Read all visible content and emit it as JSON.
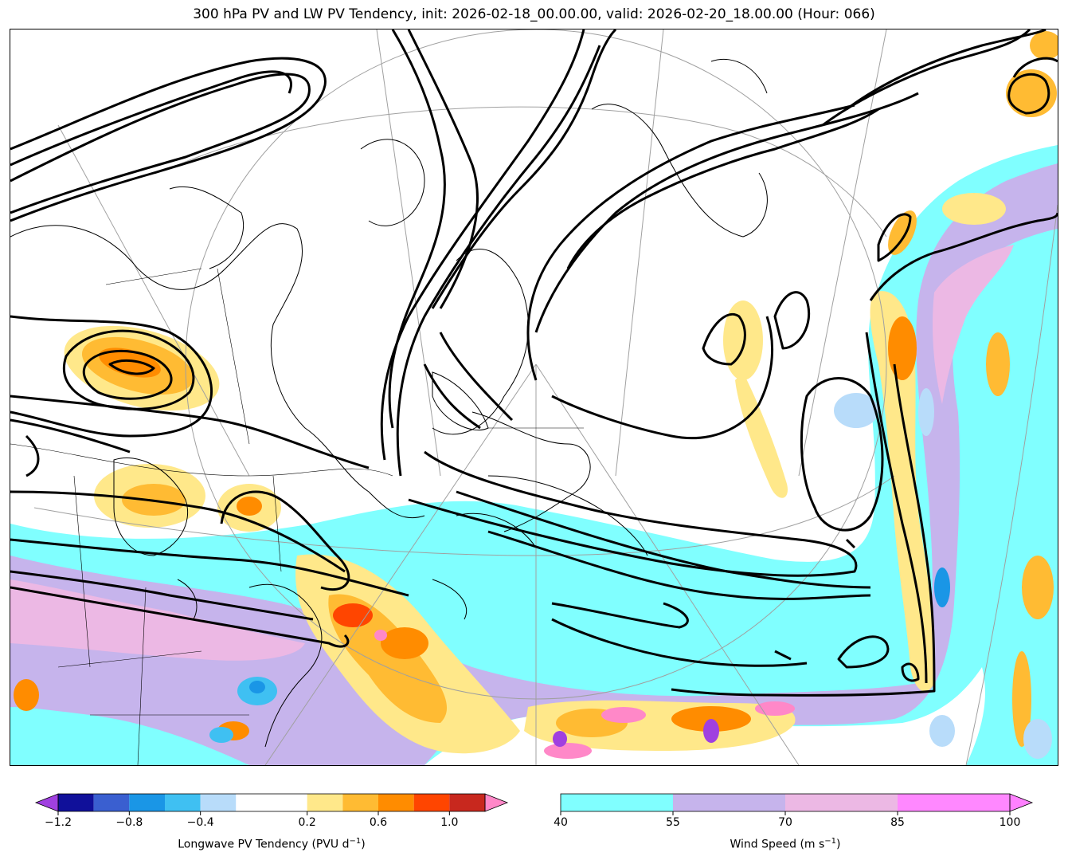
{
  "title": "300 hPa PV and LW PV Tendency, init: 2026-02-18_00.00.00, valid: 2026-02-20_18.00.00 (Hour: 066)",
  "colorbar_left": {
    "label": "Longwave PV Tendency (PVU d",
    "label_exp": "−1",
    "label_close": ")",
    "ticks": [
      "−1.2",
      "−0.8",
      "−0.4",
      "0.2",
      "0.6",
      "1.0"
    ],
    "tick_values": [
      -1.2,
      -0.8,
      -0.4,
      0.2,
      0.6,
      1.0
    ],
    "bounds": [
      -1.2,
      -1.0,
      -0.8,
      -0.6,
      -0.4,
      -0.2,
      0.2,
      0.4,
      0.6,
      0.8,
      1.0,
      1.2
    ],
    "colors": [
      "#10109a",
      "#3a5fd0",
      "#1a96e6",
      "#3fc0f2",
      "#b8dcfa",
      "#ffffff",
      "#ffe88a",
      "#ffbb33",
      "#ff8c00",
      "#ff4500",
      "#c8281e"
    ],
    "under_color": "#a040e0",
    "over_color": "#ff88c8"
  },
  "colorbar_right": {
    "label": "Wind Speed (m s",
    "label_exp": "−1",
    "label_close": ")",
    "ticks": [
      "40",
      "55",
      "70",
      "85",
      "100"
    ],
    "tick_values": [
      40,
      55,
      70,
      85,
      100
    ],
    "bounds": [
      40,
      55,
      70,
      85,
      100
    ],
    "colors": [
      "#80ffff",
      "#c6b4ec",
      "#ecb8e4",
      "#ff88ff"
    ],
    "over_color": "#ff80ff"
  },
  "colors": {
    "wind_40": "#80ffff",
    "wind_55": "#c6b4ec",
    "wind_70": "#ecb8e4",
    "pv_pos_low": "#ffe88a",
    "pv_pos_mid": "#ffbb33",
    "pv_pos_high": "#ff8c00",
    "pv_pos_max": "#ff4500",
    "pv_neg_low": "#b8dcfa",
    "pv_neg_mid": "#1a96e6",
    "contour": "#000000",
    "grid": "#a0a0a0"
  }
}
